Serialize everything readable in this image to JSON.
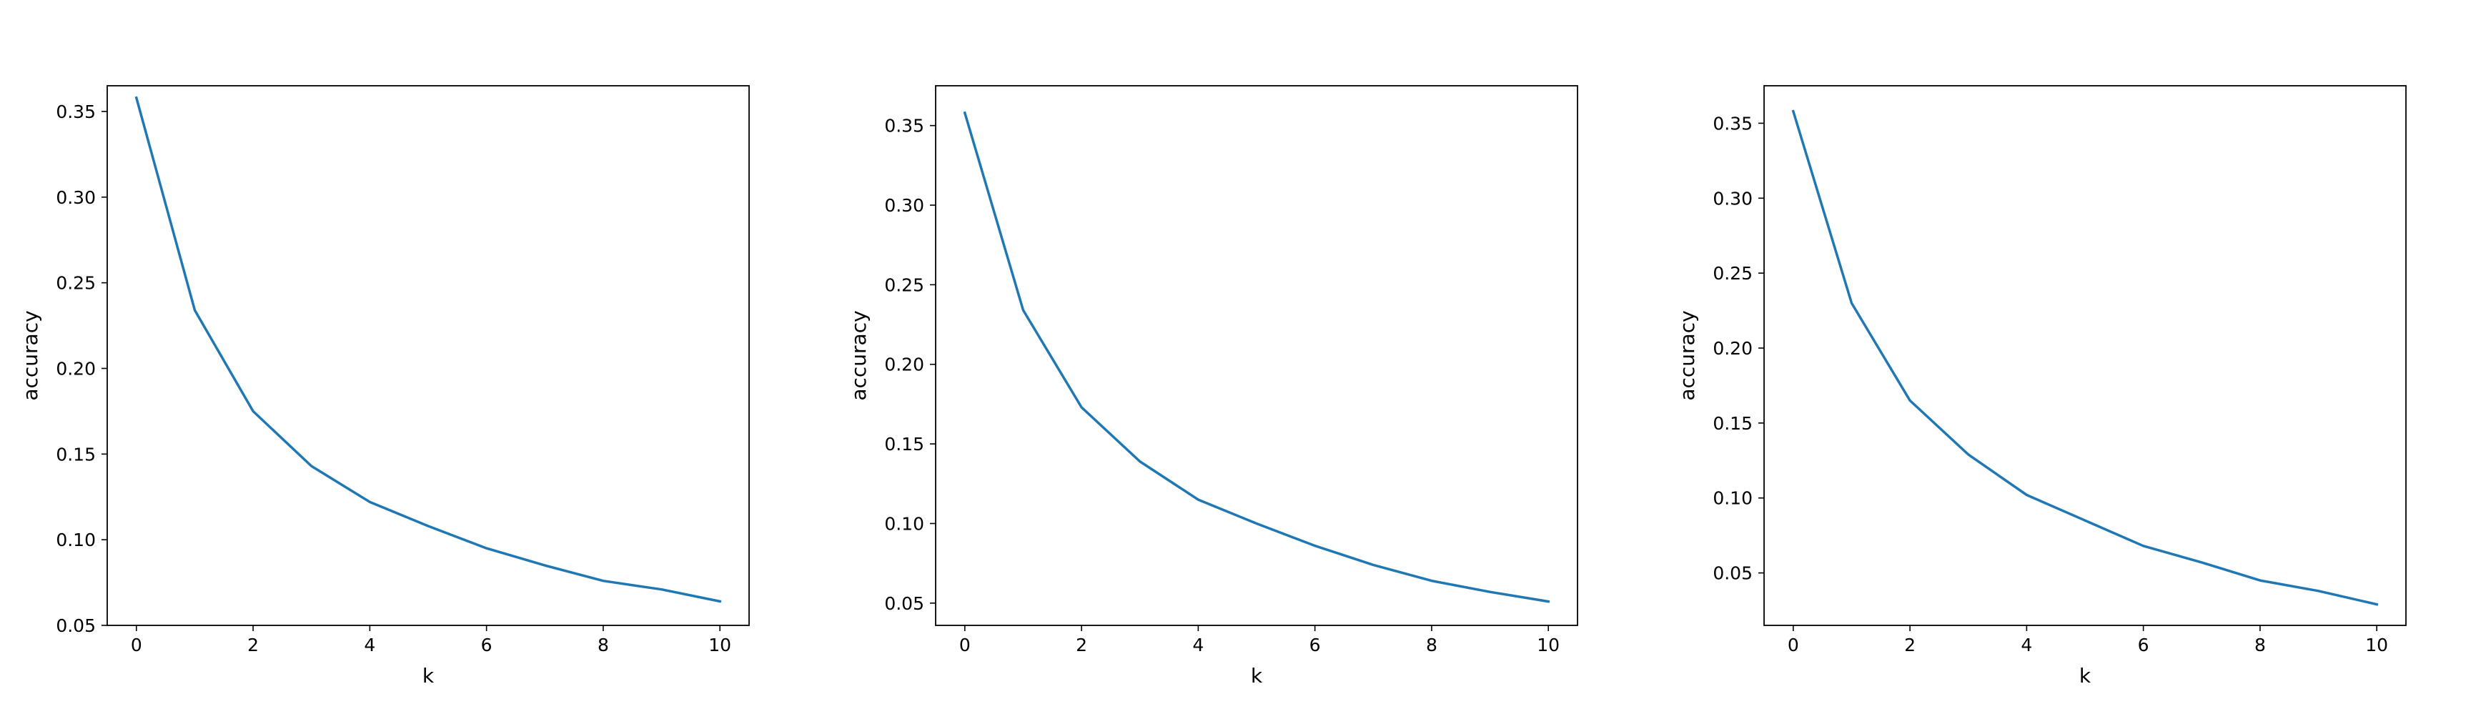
{
  "chart_data": [
    {
      "type": "line",
      "xlabel": "k",
      "ylabel": "accuracy",
      "xlim": [
        -0.5,
        10.5
      ],
      "ylim": [
        0.05,
        0.365
      ],
      "xticks": [
        0,
        2,
        4,
        6,
        8,
        10
      ],
      "xtick_labels": [
        "0",
        "2",
        "4",
        "6",
        "8",
        "10"
      ],
      "yticks": [
        0.05,
        0.1,
        0.15,
        0.2,
        0.25,
        0.3,
        0.35
      ],
      "ytick_labels": [
        "0.05",
        "0.10",
        "0.15",
        "0.20",
        "0.25",
        "0.30",
        "0.35"
      ],
      "series": [
        {
          "color": "#1f77b4",
          "x": [
            0,
            1,
            2,
            3,
            4,
            5,
            6,
            7,
            8,
            9,
            10
          ],
          "values": [
            0.358,
            0.234,
            0.175,
            0.143,
            0.122,
            0.108,
            0.095,
            0.085,
            0.076,
            0.071,
            0.064
          ]
        }
      ]
    },
    {
      "type": "line",
      "xlabel": "k",
      "ylabel": "accuracy",
      "xlim": [
        -0.5,
        10.5
      ],
      "ylim": [
        0.036,
        0.375
      ],
      "xticks": [
        0,
        2,
        4,
        6,
        8,
        10
      ],
      "xtick_labels": [
        "0",
        "2",
        "4",
        "6",
        "8",
        "10"
      ],
      "yticks": [
        0.05,
        0.1,
        0.15,
        0.2,
        0.25,
        0.3,
        0.35
      ],
      "ytick_labels": [
        "0.05",
        "0.10",
        "0.15",
        "0.20",
        "0.25",
        "0.30",
        "0.35"
      ],
      "series": [
        {
          "color": "#1f77b4",
          "x": [
            0,
            1,
            2,
            3,
            4,
            5,
            6,
            7,
            8,
            9,
            10
          ],
          "values": [
            0.358,
            0.234,
            0.173,
            0.139,
            0.115,
            0.1,
            0.086,
            0.074,
            0.064,
            0.057,
            0.051
          ]
        }
      ]
    },
    {
      "type": "line",
      "xlabel": "k",
      "ylabel": "accuracy",
      "xlim": [
        -0.5,
        10.5
      ],
      "ylim": [
        0.015,
        0.375
      ],
      "xticks": [
        0,
        2,
        4,
        6,
        8,
        10
      ],
      "xtick_labels": [
        "0",
        "2",
        "4",
        "6",
        "8",
        "10"
      ],
      "yticks": [
        0.05,
        0.1,
        0.15,
        0.2,
        0.25,
        0.3,
        0.35
      ],
      "ytick_labels": [
        "0.05",
        "0.10",
        "0.15",
        "0.20",
        "0.25",
        "0.30",
        "0.35"
      ],
      "series": [
        {
          "color": "#1f77b4",
          "x": [
            0,
            1,
            2,
            3,
            4,
            5,
            6,
            7,
            8,
            9,
            10
          ],
          "values": [
            0.358,
            0.23,
            0.165,
            0.129,
            0.102,
            0.085,
            0.068,
            0.057,
            0.045,
            0.038,
            0.029
          ]
        }
      ]
    }
  ]
}
